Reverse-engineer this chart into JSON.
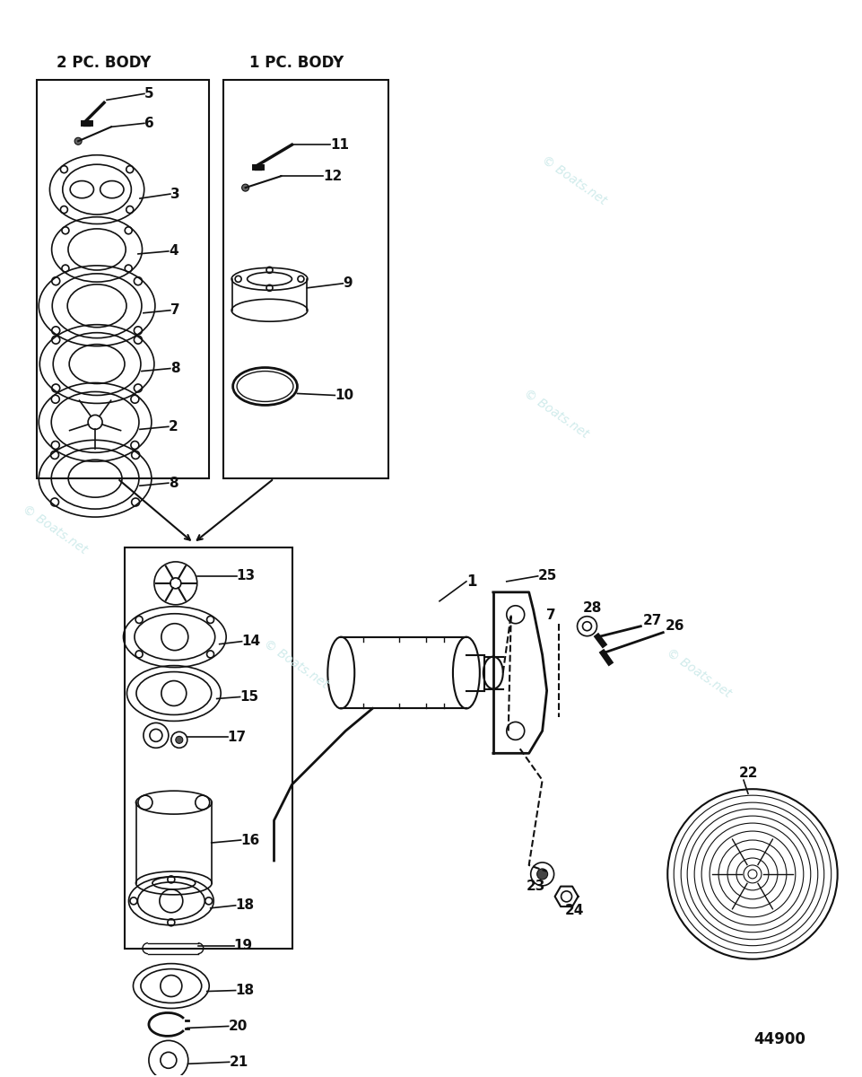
{
  "bg_color": "#ffffff",
  "watermark_color": "#c8e8e8",
  "watermark_text": "© Boats.net",
  "title_2pc": "2 PC. BODY",
  "title_1pc": "1 PC. BODY",
  "diagram_number": "44900",
  "fig_width": 9.61,
  "fig_height": 12.0,
  "label_color": "#111111",
  "line_color": "#111111",
  "box_color": "#111111",
  "lw": 1.2
}
